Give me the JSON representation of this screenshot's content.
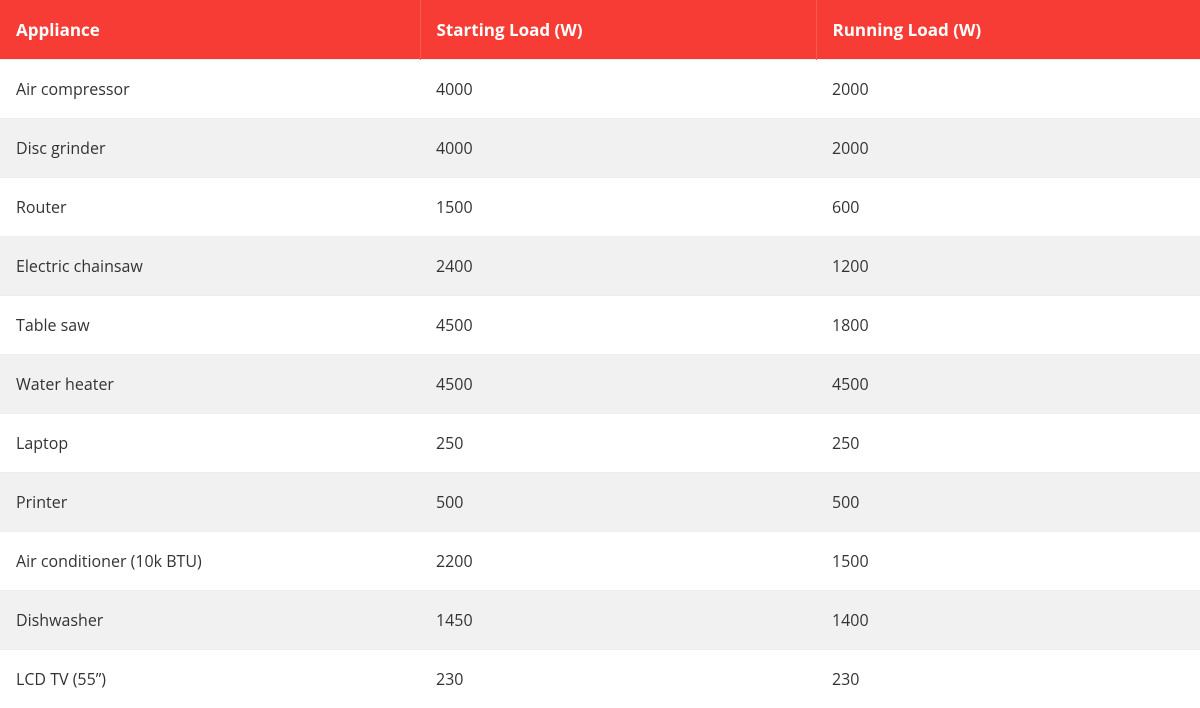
{
  "table": {
    "header_bg": "#f63c35",
    "header_color": "#ffffff",
    "row_bg_odd": "#ffffff",
    "row_bg_even": "#f1f1f1",
    "text_color": "#333333",
    "font_size_header": 17,
    "font_size_body": 16,
    "cell_padding": "18px 16px",
    "columns": [
      {
        "key": "appliance",
        "label": "Appliance",
        "width": "35%"
      },
      {
        "key": "starting",
        "label": "Starting Load (W)",
        "width": "33%"
      },
      {
        "key": "running",
        "label": "Running Load (W)",
        "width": "32%"
      }
    ],
    "rows": [
      {
        "appliance": "Air compressor",
        "starting": "4000",
        "running": "2000"
      },
      {
        "appliance": "Disc grinder",
        "starting": "4000",
        "running": "2000"
      },
      {
        "appliance": "Router",
        "starting": "1500",
        "running": "600"
      },
      {
        "appliance": "Electric chainsaw",
        "starting": "2400",
        "running": "1200"
      },
      {
        "appliance": "Table saw",
        "starting": "4500",
        "running": "1800"
      },
      {
        "appliance": "Water heater",
        "starting": "4500",
        "running": "4500"
      },
      {
        "appliance": "Laptop",
        "starting": "250",
        "running": "250"
      },
      {
        "appliance": "Printer",
        "starting": "500",
        "running": "500"
      },
      {
        "appliance": "Air conditioner (10k BTU)",
        "starting": "2200",
        "running": "1500"
      },
      {
        "appliance": "Dishwasher",
        "starting": "1450",
        "running": "1400"
      },
      {
        "appliance": "LCD TV (55”)",
        "starting": "230",
        "running": "230"
      }
    ]
  }
}
